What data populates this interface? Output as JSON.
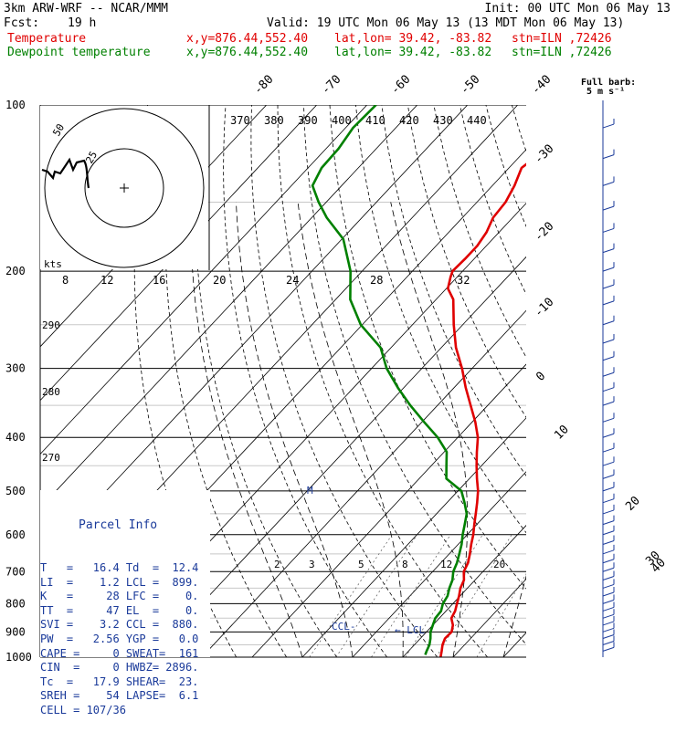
{
  "header": {
    "model": "3km ARW-WRF -- NCAR/MMM",
    "init": "Init: 00 UTC Mon 06 May 13",
    "fcst_label": "Fcst:",
    "fcst_hours": "19 h",
    "valid": "Valid: 19 UTC Mon 06 May 13 (13 MDT Mon 06 May 13)"
  },
  "legend": [
    {
      "label": "Temperature",
      "xy": "x,y=876.44,552.40",
      "latlon": "lat,lon= 39.42, -83.82",
      "stn": "stn=ILN ,72426",
      "color": "#e00000"
    },
    {
      "label": "Dewpoint temperature",
      "xy": "x,y=876.44,552.40",
      "latlon": "lat,lon= 39.42, -83.82",
      "stn": "stn=ILN ,72426",
      "color": "#008000"
    }
  ],
  "barb_title": "Full barb:\n 5 m s⁻¹",
  "parcel_info": {
    "title": "Parcel Info",
    "rows": [
      "T   =   16.4 Td  =  12.4",
      "LI  =    1.2 LCL =  899.",
      "K   =     28 LFC =    0.",
      "TT  =     47 EL  =    0.",
      "SVI =    3.2 CCL =  880.",
      "PW  =   2.56 YGP =   0.0",
      "CAPE =     0 SWEAT=  161",
      "CIN  =     0 HWBZ= 2896.",
      "Tc  =   17.9 SHEAR=  23.",
      "SREH =    54 LAPSE=  6.1",
      "CELL = 107/36"
    ]
  },
  "chart_data": {
    "type": "line",
    "subtype": "skew-T log-p sounding",
    "y_scale": "log",
    "ylim": [
      1000,
      100
    ],
    "pressure_ticks": [
      "100",
      "200",
      "300",
      "400",
      "500",
      "600",
      "700",
      "800",
      "900",
      "1000"
    ],
    "isotherm_labels": [
      "-80",
      "-70",
      "-60",
      "-50",
      "-40",
      "-30",
      "-20",
      "-10",
      "0",
      "10",
      "20",
      "30",
      "40"
    ],
    "theta_e_labels": [
      "370",
      "380",
      "390",
      "400",
      "410",
      "420",
      "430",
      "440"
    ],
    "mixing_ratio_upper": [
      "8",
      "12",
      "16",
      "20",
      "24",
      "28",
      "32"
    ],
    "mixing_ratio_lower": [
      "2",
      "3",
      "5",
      "8",
      "12",
      "20"
    ],
    "theta_labels": [
      "290",
      "280",
      "270"
    ],
    "hodograph": {
      "unit_label": "kts",
      "ring_labels": [
        "50",
        "25"
      ]
    },
    "markers": {
      "ccl": "CCL",
      "lcl": "LCL",
      "moist": "M"
    },
    "series": [
      {
        "name": "Temperature",
        "color": "#e00000",
        "points": [
          [
            1000,
            17.5
          ],
          [
            975,
            16.6
          ],
          [
            950,
            15.6
          ],
          [
            925,
            14.9
          ],
          [
            900,
            15.0
          ],
          [
            875,
            14.0
          ],
          [
            850,
            12.4
          ],
          [
            825,
            11.8
          ],
          [
            800,
            10.8
          ],
          [
            775,
            9.8
          ],
          [
            750,
            8.6
          ],
          [
            725,
            7.8
          ],
          [
            700,
            6.2
          ],
          [
            675,
            5.4
          ],
          [
            650,
            4.1
          ],
          [
            625,
            2.6
          ],
          [
            600,
            1.2
          ],
          [
            575,
            -0.5
          ],
          [
            550,
            -2.2
          ],
          [
            525,
            -4.0
          ],
          [
            500,
            -6.0
          ],
          [
            475,
            -8.5
          ],
          [
            450,
            -11.0
          ],
          [
            425,
            -13.5
          ],
          [
            400,
            -16.0
          ],
          [
            375,
            -19.4
          ],
          [
            350,
            -23.4
          ],
          [
            325,
            -27.7
          ],
          [
            300,
            -32.0
          ],
          [
            275,
            -37.1
          ],
          [
            250,
            -41.8
          ],
          [
            225,
            -46.6
          ],
          [
            215,
            -49.7
          ],
          [
            205,
            -51.3
          ],
          [
            200,
            -52.0
          ],
          [
            190,
            -51.8
          ],
          [
            180,
            -51.8
          ],
          [
            170,
            -52.5
          ],
          [
            160,
            -53.9
          ],
          [
            150,
            -54.3
          ],
          [
            140,
            -55.6
          ],
          [
            130,
            -57.5
          ],
          [
            120,
            -56.1
          ],
          [
            110,
            -55.6
          ],
          [
            100,
            -55.2
          ]
        ]
      },
      {
        "name": "Dewpoint temperature",
        "color": "#008000",
        "points": [
          [
            990,
            14.0
          ],
          [
            975,
            13.6
          ],
          [
            950,
            13.0
          ],
          [
            925,
            12.0
          ],
          [
            900,
            10.8
          ],
          [
            875,
            10.0
          ],
          [
            850,
            9.2
          ],
          [
            825,
            9.0
          ],
          [
            800,
            8.0
          ],
          [
            775,
            7.5
          ],
          [
            750,
            6.4
          ],
          [
            725,
            5.5
          ],
          [
            700,
            4.1
          ],
          [
            675,
            3.2
          ],
          [
            650,
            2.0
          ],
          [
            625,
            0.7
          ],
          [
            600,
            -0.9
          ],
          [
            575,
            -2.4
          ],
          [
            550,
            -4.0
          ],
          [
            525,
            -6.5
          ],
          [
            500,
            -9.3
          ],
          [
            475,
            -14.6
          ],
          [
            450,
            -17.0
          ],
          [
            425,
            -19.5
          ],
          [
            400,
            -24.0
          ],
          [
            375,
            -29.6
          ],
          [
            350,
            -35.4
          ],
          [
            325,
            -41.2
          ],
          [
            300,
            -47.0
          ],
          [
            275,
            -52.1
          ],
          [
            250,
            -60.3
          ],
          [
            225,
            -67.1
          ],
          [
            200,
            -72.3
          ],
          [
            175,
            -79.7
          ],
          [
            160,
            -87.0
          ],
          [
            150,
            -91.5
          ],
          [
            140,
            -95.8
          ],
          [
            130,
            -97.3
          ],
          [
            120,
            -97.5
          ],
          [
            110,
            -98.5
          ],
          [
            100,
            -98.2
          ]
        ]
      }
    ]
  }
}
